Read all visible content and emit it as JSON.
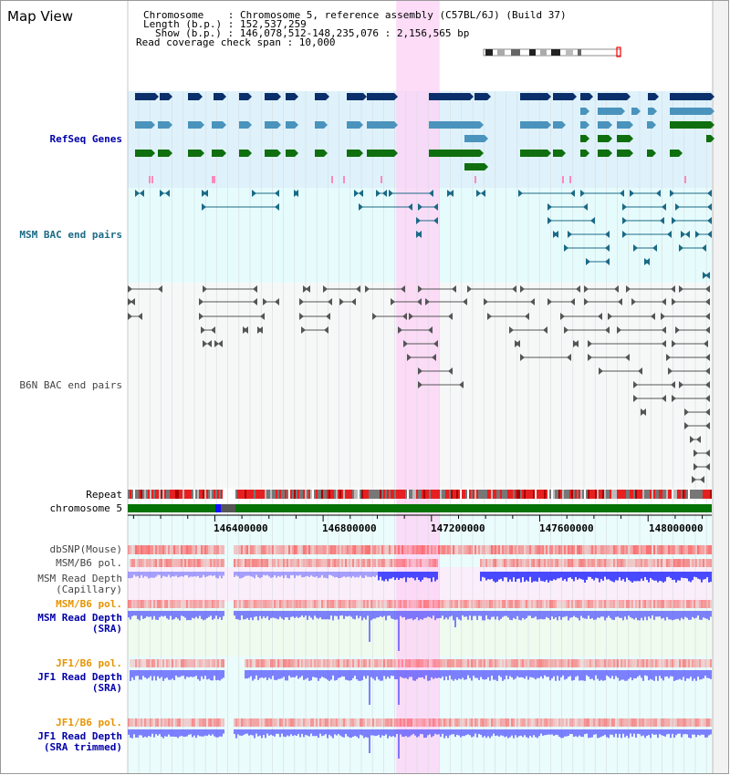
{
  "header": {
    "app_title": "Map View",
    "chromosome_label": "Chromosome    : Chromosome 5, reference assembly (C57BL/6J) (Build 37)",
    "length_label": "Length (b.p.) : 152,537,259",
    "show_label": "Show (b.p.) : 146,078,512-148,235,076 : 2,156,565 bp",
    "coverage_label": "Read coverage check span : 10,000"
  },
  "tracks": {
    "refseq": "RefSeq Genes",
    "msm_bac": "MSM BAC end pairs",
    "b6n_bac": "B6N BAC end pairs",
    "repeat": "Repeat",
    "chromosome": "chromosome 5",
    "dbsnp": "dbSNP(Mouse)",
    "msm_b6_pol_1": "MSM/B6 pol.",
    "msm_depth_cap_1": "MSM Read Depth",
    "msm_depth_cap_2": "(Capillary)",
    "msm_b6_pol_2": "MSM/B6 pol.",
    "msm_depth_sra_1": "MSM Read Depth",
    "msm_depth_sra_2": "(SRA)",
    "jf1_b6_pol_1": "JF1/B6 pol.",
    "jf1_depth_sra_1": "JF1 Read Depth",
    "jf1_depth_sra_2": "(SRA)",
    "jf1_b6_pol_2": "JF1/B6 pol.",
    "jf1_depth_trim_1": "JF1 Read Depth",
    "jf1_depth_trim_2": "(SRA trimmed)"
  },
  "axis": {
    "start": 146078512,
    "end": 148235076,
    "ticks": [
      {
        "value": 146400000,
        "label": "146400000"
      },
      {
        "value": 146800000,
        "label": "146800000"
      },
      {
        "value": 147200000,
        "label": "147200000"
      },
      {
        "value": 147600000,
        "label": "147600000"
      },
      {
        "value": 148000000,
        "label": "148000000"
      }
    ]
  },
  "colors": {
    "refseq_bg": "#dff2fb",
    "msm_bac_bg": "#e6fcfc",
    "b6n_bac_bg": "#f6f8f8",
    "highlight": "#fbd6f6",
    "refseq_dark": "#0b2f6b",
    "refseq_mid": "#4a93bd",
    "refseq_green": "#0f6f0f",
    "msm_bac": "#1a6a86",
    "b6n_bac": "#555555",
    "chromosome": "#067306",
    "depth": "#3f3fff",
    "pol_red": "#ff3030",
    "label_blue": "#0000aa",
    "label_teal": "#1a6a86",
    "label_orange": "#e69400",
    "label_gray": "#444444"
  },
  "chart_data": {
    "type": "genome_browser",
    "highlight_region": [
      147070000,
      147230000
    ]
  }
}
